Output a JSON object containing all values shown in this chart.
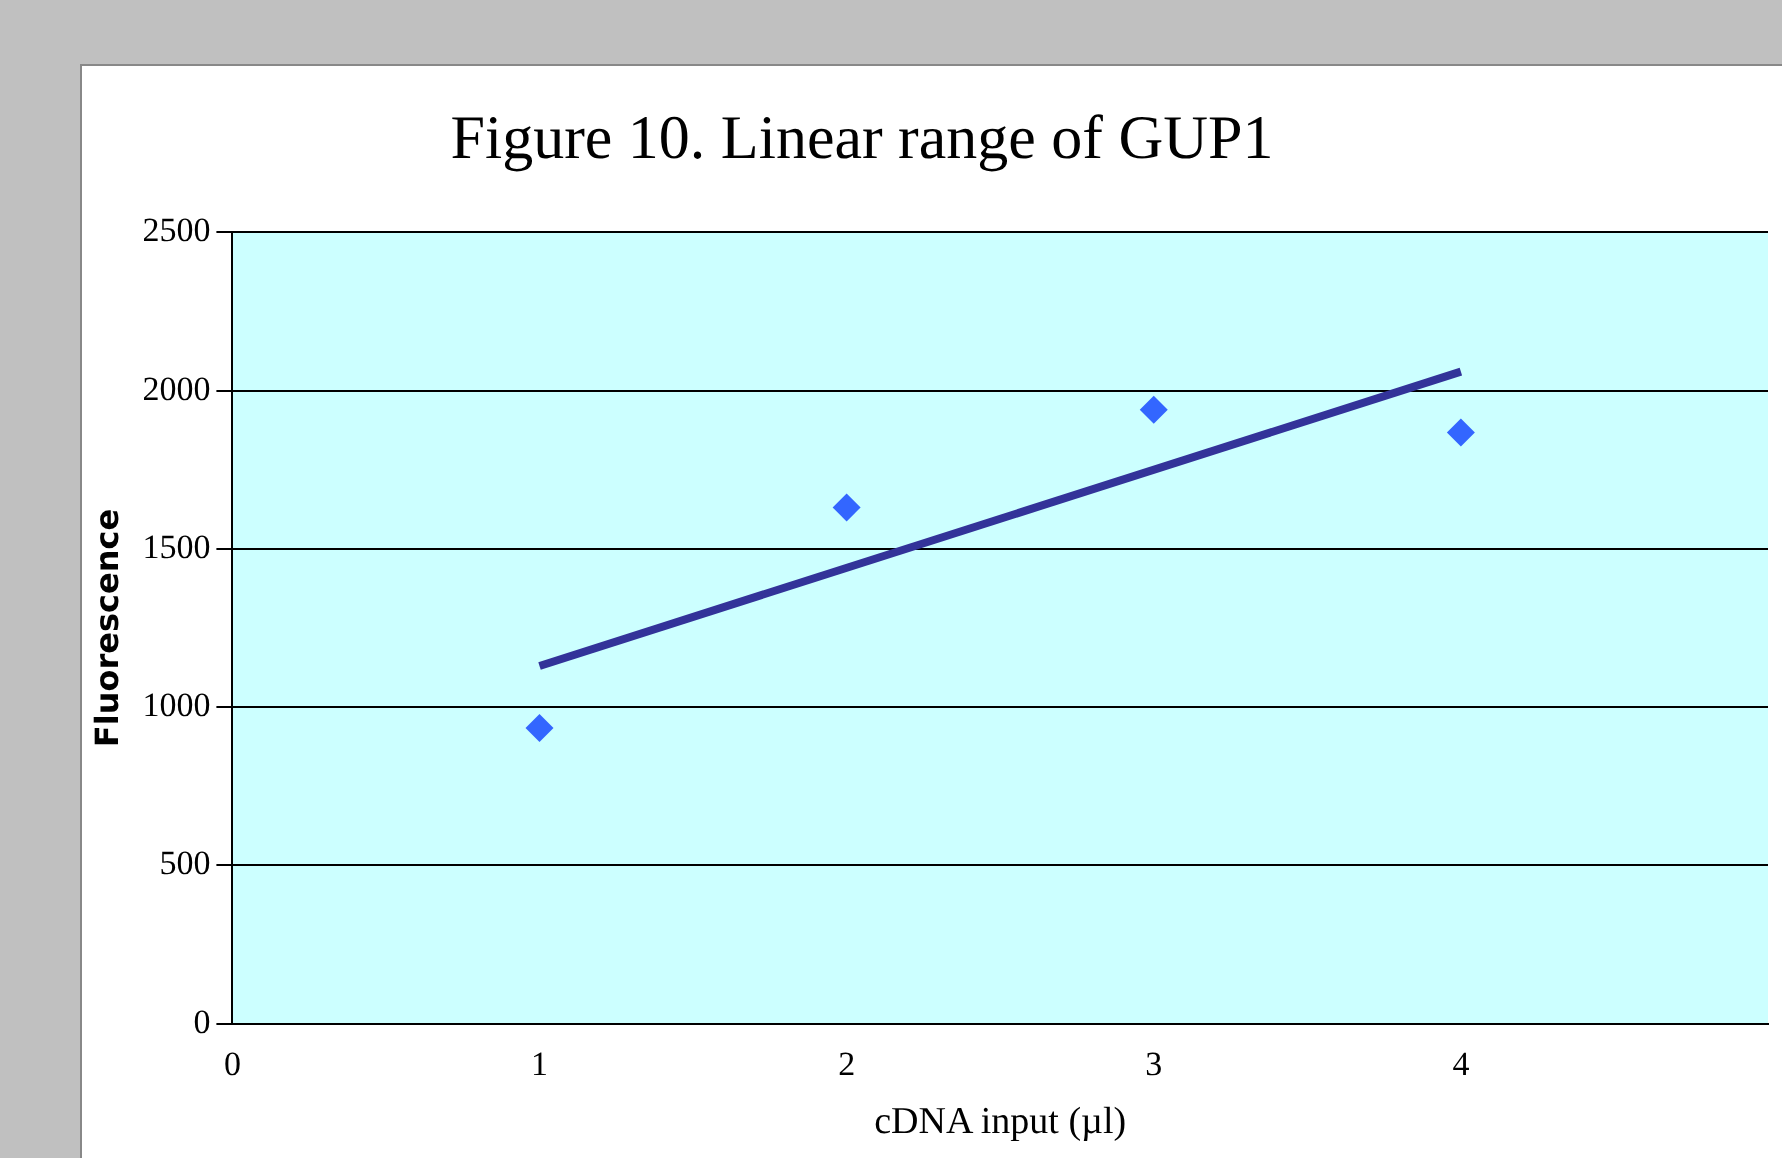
{
  "chart_data": {
    "type": "scatter",
    "title": "Figure 10. Linear range of GUP1",
    "xlabel": "cDNA input (µl)",
    "ylabel": "Fluorescence",
    "xlim": [
      0,
      5
    ],
    "xticks": [
      0,
      1,
      2,
      3,
      4
    ],
    "ylim": [
      0,
      2500
    ],
    "yticks": [
      0,
      500,
      1000,
      1500,
      2000,
      2500
    ],
    "grid": "y",
    "legend": false,
    "marker": "diamond",
    "series": [
      {
        "color": "#3366ff",
        "x": [
          1,
          2,
          3,
          4
        ],
        "values": [
          934,
          1631,
          1940,
          1868
        ]
      },
      {
        "type": "line",
        "color": "#333399",
        "x": [
          1,
          4
        ],
        "values": [
          1130,
          2060
        ],
        "marker": "none"
      }
    ]
  }
}
